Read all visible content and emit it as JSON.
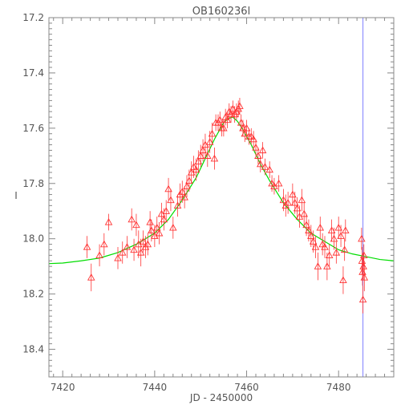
{
  "chart_data": {
    "type": "scatter",
    "title": "OB160236l",
    "xlabel": "JD - 2450000",
    "ylabel": "I",
    "xlim": [
      7417,
      7492
    ],
    "ylim": [
      18.5,
      17.2
    ],
    "y_inverted": true,
    "x_ticks": [
      7420,
      7440,
      7460,
      7480
    ],
    "y_ticks": [
      17.2,
      17.4,
      17.6,
      17.8,
      18.0,
      18.2,
      18.4
    ],
    "x_tick_labels": [
      "7420",
      "7440",
      "7460",
      "7480"
    ],
    "y_tick_labels": [
      "17.2",
      "17.4",
      "17.6",
      "17.8",
      "18.0",
      "18.2",
      "18.4"
    ],
    "grid": false,
    "vertical_marker_x": 7485.3,
    "model_curve": {
      "shape": "microlensing light curve",
      "points": [
        [
          7417,
          18.09
        ],
        [
          7420,
          18.088
        ],
        [
          7424,
          18.08
        ],
        [
          7428,
          18.07
        ],
        [
          7432,
          18.05
        ],
        [
          7436,
          18.02
        ],
        [
          7440,
          17.98
        ],
        [
          7443,
          17.93
        ],
        [
          7446,
          17.86
        ],
        [
          7449,
          17.78
        ],
        [
          7451,
          17.71
        ],
        [
          7453,
          17.64
        ],
        [
          7455,
          17.58
        ],
        [
          7456,
          17.565
        ],
        [
          7457,
          17.56
        ],
        [
          7458,
          17.575
        ],
        [
          7459,
          17.6
        ],
        [
          7461,
          17.66
        ],
        [
          7463,
          17.73
        ],
        [
          7465,
          17.79
        ],
        [
          7468,
          17.87
        ],
        [
          7471,
          17.93
        ],
        [
          7474,
          17.98
        ],
        [
          7477,
          18.01
        ],
        [
          7480,
          18.04
        ],
        [
          7483,
          18.055
        ],
        [
          7486,
          18.065
        ],
        [
          7489,
          18.075
        ],
        [
          7492,
          18.08
        ]
      ]
    },
    "points": [
      [
        7425.3,
        18.03,
        0.04
      ],
      [
        7426.2,
        18.14,
        0.05
      ],
      [
        7428.0,
        18.06,
        0.04
      ],
      [
        7429.0,
        18.02,
        0.04
      ],
      [
        7430.0,
        17.94,
        0.03
      ],
      [
        7432.0,
        18.07,
        0.04
      ],
      [
        7433.0,
        18.05,
        0.04
      ],
      [
        7434.0,
        18.03,
        0.04
      ],
      [
        7435.0,
        17.93,
        0.04
      ],
      [
        7435.5,
        18.04,
        0.04
      ],
      [
        7436.0,
        17.95,
        0.04
      ],
      [
        7436.5,
        18.02,
        0.05
      ],
      [
        7437.0,
        18.05,
        0.05
      ],
      [
        7437.5,
        18.01,
        0.04
      ],
      [
        7438.0,
        18.03,
        0.04
      ],
      [
        7438.5,
        18.02,
        0.04
      ],
      [
        7439.0,
        17.94,
        0.04
      ],
      [
        7439.3,
        17.97,
        0.04
      ],
      [
        7440.0,
        17.99,
        0.04
      ],
      [
        7440.5,
        17.96,
        0.04
      ],
      [
        7441.0,
        17.98,
        0.04
      ],
      [
        7441.5,
        17.91,
        0.04
      ],
      [
        7442.0,
        17.93,
        0.04
      ],
      [
        7442.5,
        17.9,
        0.04
      ],
      [
        7443.0,
        17.82,
        0.04
      ],
      [
        7443.5,
        17.86,
        0.04
      ],
      [
        7444.0,
        17.96,
        0.04
      ],
      [
        7445.0,
        17.88,
        0.04
      ],
      [
        7445.5,
        17.84,
        0.04
      ],
      [
        7446.0,
        17.83,
        0.04
      ],
      [
        7446.5,
        17.85,
        0.04
      ],
      [
        7447.0,
        17.81,
        0.04
      ],
      [
        7447.5,
        17.79,
        0.04
      ],
      [
        7448.0,
        17.76,
        0.04
      ],
      [
        7448.5,
        17.74,
        0.04
      ],
      [
        7449.0,
        17.75,
        0.04
      ],
      [
        7449.5,
        17.72,
        0.04
      ],
      [
        7450.0,
        17.7,
        0.04
      ],
      [
        7450.5,
        17.68,
        0.04
      ],
      [
        7451.0,
        17.66,
        0.04
      ],
      [
        7451.5,
        17.7,
        0.04
      ],
      [
        7452.0,
        17.65,
        0.04
      ],
      [
        7452.5,
        17.62,
        0.04
      ],
      [
        7453.0,
        17.71,
        0.04
      ],
      [
        7453.3,
        17.58,
        0.03
      ],
      [
        7453.8,
        17.58,
        0.03
      ],
      [
        7454.2,
        17.57,
        0.03
      ],
      [
        7454.6,
        17.6,
        0.03
      ],
      [
        7455.0,
        17.6,
        0.03
      ],
      [
        7455.4,
        17.56,
        0.03
      ],
      [
        7455.8,
        17.57,
        0.03
      ],
      [
        7456.2,
        17.54,
        0.03
      ],
      [
        7456.6,
        17.55,
        0.03
      ],
      [
        7457.0,
        17.53,
        0.03
      ],
      [
        7457.4,
        17.55,
        0.03
      ],
      [
        7457.8,
        17.54,
        0.03
      ],
      [
        7458.2,
        17.53,
        0.03
      ],
      [
        7458.5,
        17.52,
        0.03
      ],
      [
        7458.8,
        17.58,
        0.03
      ],
      [
        7459.2,
        17.6,
        0.03
      ],
      [
        7459.6,
        17.62,
        0.03
      ],
      [
        7460.0,
        17.6,
        0.03
      ],
      [
        7460.5,
        17.63,
        0.03
      ],
      [
        7461.0,
        17.63,
        0.03
      ],
      [
        7461.5,
        17.64,
        0.03
      ],
      [
        7462.0,
        17.67,
        0.03
      ],
      [
        7462.5,
        17.7,
        0.03
      ],
      [
        7463.0,
        17.73,
        0.03
      ],
      [
        7463.5,
        17.68,
        0.03
      ],
      [
        7464.0,
        17.74,
        0.03
      ],
      [
        7465.0,
        17.75,
        0.03
      ],
      [
        7465.5,
        17.8,
        0.03
      ],
      [
        7466.0,
        17.81,
        0.03
      ],
      [
        7467.0,
        17.8,
        0.03
      ],
      [
        7468.0,
        17.86,
        0.04
      ],
      [
        7468.5,
        17.88,
        0.04
      ],
      [
        7469.0,
        17.87,
        0.04
      ],
      [
        7470.0,
        17.84,
        0.04
      ],
      [
        7470.5,
        17.87,
        0.04
      ],
      [
        7471.0,
        17.89,
        0.04
      ],
      [
        7471.5,
        17.92,
        0.04
      ],
      [
        7472.0,
        17.86,
        0.04
      ],
      [
        7472.5,
        17.91,
        0.04
      ],
      [
        7473.0,
        17.95,
        0.04
      ],
      [
        7473.5,
        17.97,
        0.04
      ],
      [
        7474.0,
        17.99,
        0.04
      ],
      [
        7474.5,
        18.01,
        0.04
      ],
      [
        7475.0,
        18.03,
        0.04
      ],
      [
        7475.5,
        18.1,
        0.05
      ],
      [
        7476.0,
        17.96,
        0.04
      ],
      [
        7476.5,
        18.02,
        0.04
      ],
      [
        7477.0,
        18.03,
        0.04
      ],
      [
        7477.5,
        18.1,
        0.05
      ],
      [
        7478.0,
        18.06,
        0.04
      ],
      [
        7478.5,
        17.97,
        0.04
      ],
      [
        7479.0,
        18.0,
        0.04
      ],
      [
        7479.5,
        18.05,
        0.04
      ],
      [
        7480.0,
        17.96,
        0.04
      ],
      [
        7480.5,
        17.99,
        0.04
      ],
      [
        7481.0,
        18.15,
        0.05
      ],
      [
        7481.3,
        18.04,
        0.04
      ],
      [
        7481.5,
        17.97,
        0.04
      ],
      [
        7485.0,
        18.0,
        0.04
      ],
      [
        7485.1,
        18.08,
        0.05
      ],
      [
        7485.2,
        18.12,
        0.05
      ],
      [
        7485.3,
        18.22,
        0.05
      ],
      [
        7485.4,
        18.1,
        0.05
      ],
      [
        7485.5,
        18.06,
        0.04
      ],
      [
        7485.6,
        18.14,
        0.05
      ]
    ]
  }
}
